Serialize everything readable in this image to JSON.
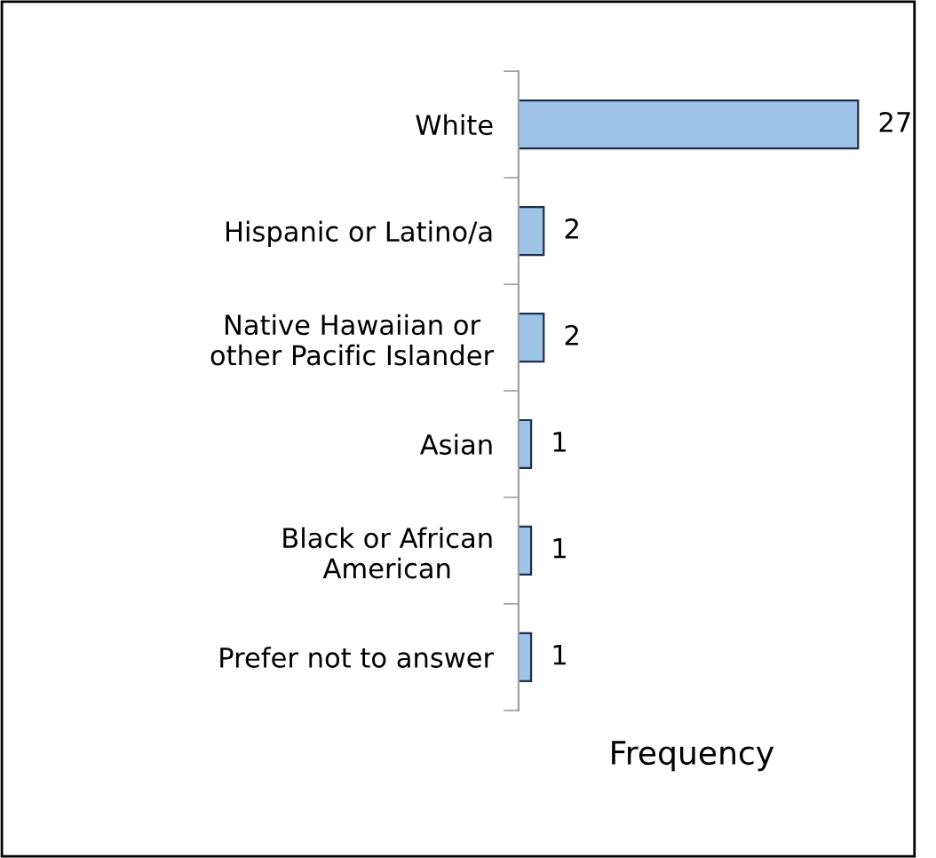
{
  "chart_data": {
    "type": "bar",
    "orientation": "horizontal",
    "categories": [
      "White",
      "Hispanic or Latino/a",
      "Native Hawaiian or\nother Pacific Islander",
      "Asian",
      "Black or African\nAmerican",
      "Prefer not to answer"
    ],
    "values": [
      27,
      2,
      2,
      1,
      1,
      1
    ],
    "color": "#9dc3e6",
    "xlabel": "Frequency",
    "data_labels": true,
    "tick_labels": "y",
    "grid": false,
    "legend": false
  }
}
